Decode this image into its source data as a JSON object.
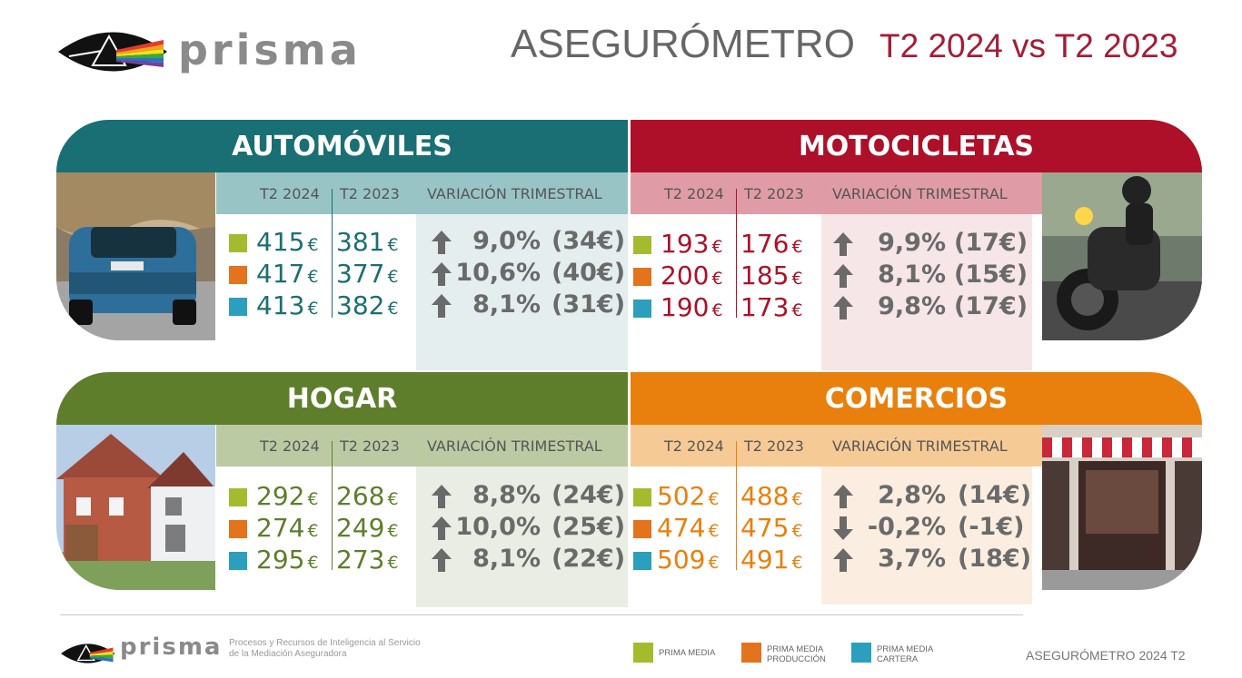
{
  "brand": {
    "name": "prisma",
    "tagline": "Procesos y Recursos de Inteligencia al Servicio de la Mediación Aseguradora"
  },
  "header": {
    "title": "ASEGURÓMETRO",
    "subtitle": "T2 2024 vs T2 2023"
  },
  "column_labels": {
    "current": "T2 2024",
    "previous": "T2 2023",
    "variation": "VARIACIÓN TRIMESTRAL"
  },
  "currency": "€",
  "panels": {
    "autos": {
      "title": "AUTOMÓVILES",
      "color": "#1a6f74",
      "sub_color": "#99c4c6",
      "box_color": "#e4eeee",
      "value_color": "#1a6f74",
      "photo": "car-photo",
      "rows": [
        {
          "current": "415",
          "previous": "381",
          "direction": "up",
          "variation": "9,0%",
          "diff": "(34€)"
        },
        {
          "current": "417",
          "previous": "377",
          "direction": "up",
          "variation": "10,6%",
          "diff": "(40€)"
        },
        {
          "current": "413",
          "previous": "382",
          "direction": "up",
          "variation": "8,1%",
          "diff": "(31€)"
        }
      ]
    },
    "motos": {
      "title": "MOTOCICLETAS",
      "color": "#ad1028",
      "sub_color": "#e09ca6",
      "box_color": "#f6e6e8",
      "value_color": "#ad1028",
      "photo": "motorcycle-photo",
      "rows": [
        {
          "current": "193",
          "previous": "176",
          "direction": "up",
          "variation": "9,9%",
          "diff": "(17€)"
        },
        {
          "current": "200",
          "previous": "185",
          "direction": "up",
          "variation": "8,1%",
          "diff": "(15€)"
        },
        {
          "current": "190",
          "previous": "173",
          "direction": "up",
          "variation": "9,8%",
          "diff": "(17€)"
        }
      ]
    },
    "hogar": {
      "title": "HOGAR",
      "color": "#5e7e2b",
      "sub_color": "#bccaa3",
      "box_color": "#e9ede3",
      "value_color": "#5e7e2b",
      "photo": "house-photo",
      "rows": [
        {
          "current": "292",
          "previous": "268",
          "direction": "up",
          "variation": "8,8%",
          "diff": "(24€)"
        },
        {
          "current": "274",
          "previous": "249",
          "direction": "up",
          "variation": "10,0%",
          "diff": "(25€)"
        },
        {
          "current": "295",
          "previous": "273",
          "direction": "up",
          "variation": "8,1%",
          "diff": "(22€)"
        }
      ]
    },
    "comercios": {
      "title": "COMERCIOS",
      "color": "#e9800d",
      "sub_color": "#f6ca95",
      "box_color": "#fbeee0",
      "value_color": "#e9800d",
      "photo": "shop-photo",
      "rows": [
        {
          "current": "502",
          "previous": "488",
          "direction": "up",
          "variation": "2,8%",
          "diff": "(14€)"
        },
        {
          "current": "474",
          "previous": "475",
          "direction": "down",
          "variation": "-0,2%",
          "diff": "(-1€)"
        },
        {
          "current": "509",
          "previous": "491",
          "direction": "up",
          "variation": "3,7%",
          "diff": "(18€)"
        }
      ]
    }
  },
  "legend": [
    {
      "label": "PRIMA MEDIA",
      "color": "#a4bb2d"
    },
    {
      "label": "PRIMA MEDIA PRODUCCIÓN",
      "color": "#e4731d"
    },
    {
      "label": "PRIMA MEDIA CARTERA",
      "color": "#2b9fbd"
    }
  ],
  "footer": {
    "reference": "ASEGURÓMETRO 2024 T2"
  }
}
